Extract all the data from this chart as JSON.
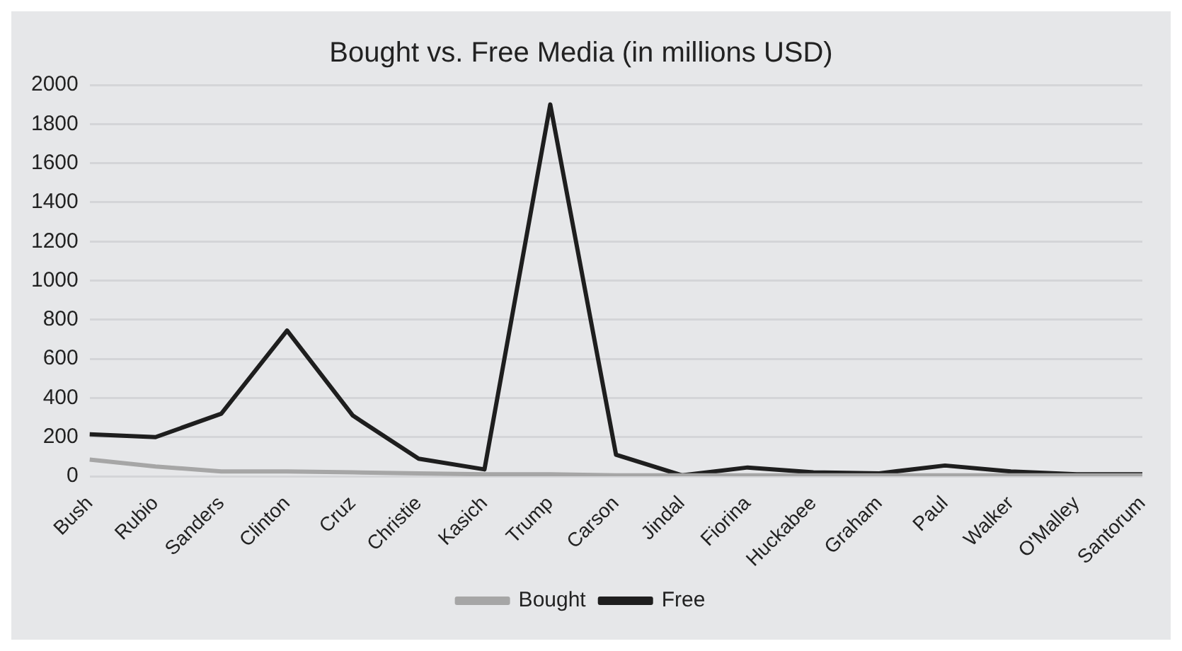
{
  "chart_data": {
    "type": "line",
    "title": "Bought vs. Free Media (in millions USD)",
    "categories": [
      "Bush",
      "Rubio",
      "Sanders",
      "Clinton",
      "Cruz",
      "Christie",
      "Kasich",
      "Trump",
      "Carson",
      "Jindal",
      "Fiorina",
      "Huckabee",
      "Graham",
      "Paul",
      "Walker",
      "O'Malley",
      "Santorum"
    ],
    "series": [
      {
        "name": "Bought",
        "color": "#a6a6a6",
        "values": [
          85,
          50,
          25,
          25,
          20,
          15,
          10,
          10,
          5,
          5,
          5,
          5,
          5,
          5,
          5,
          5,
          5
        ]
      },
      {
        "name": "Free",
        "color": "#1e1e1e",
        "values": [
          215,
          200,
          320,
          745,
          310,
          90,
          35,
          1900,
          110,
          5,
          45,
          20,
          15,
          55,
          25,
          10,
          10
        ]
      }
    ],
    "ylim": [
      0,
      2000
    ],
    "yticks": [
      0,
      200,
      400,
      600,
      800,
      1000,
      1200,
      1400,
      1600,
      1800,
      2000
    ],
    "grid": "y",
    "legend": "bottom",
    "marker": "none",
    "line_style": "solid"
  }
}
